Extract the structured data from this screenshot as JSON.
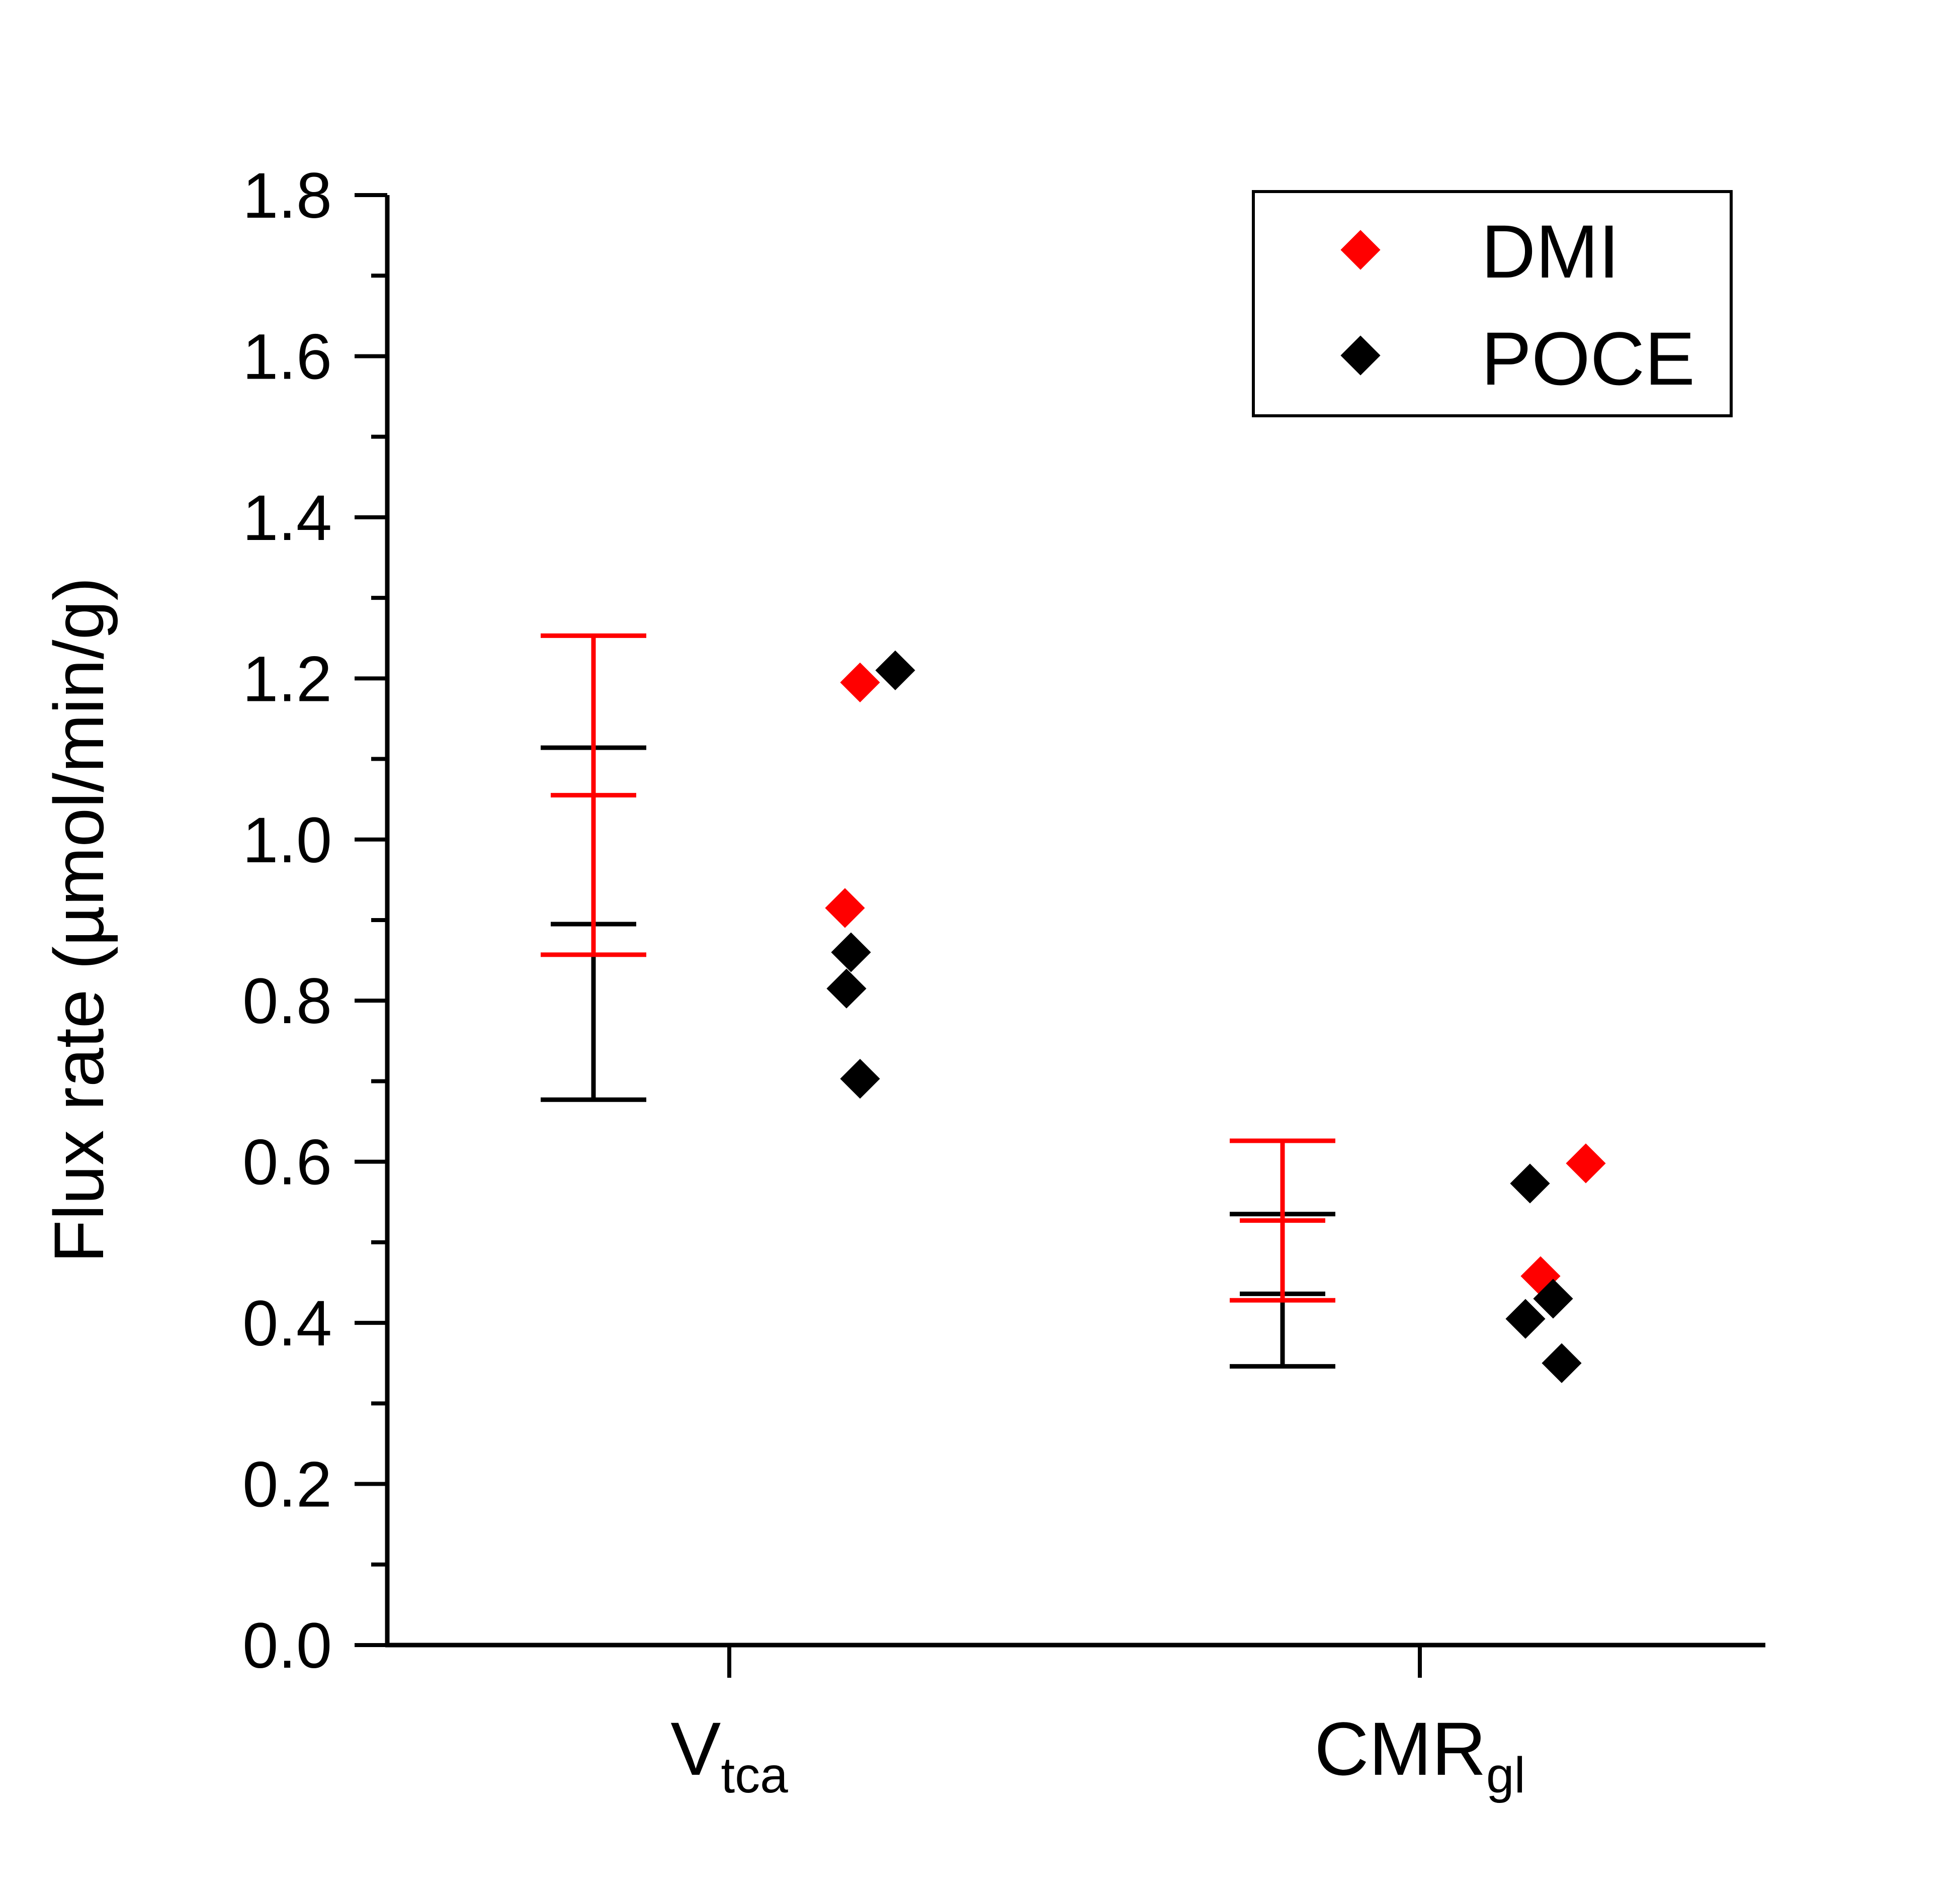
{
  "chart_data": {
    "type": "scatter",
    "title": "",
    "xlabel": "",
    "ylabel": "Flux rate (µmol/min/g)",
    "ylim": [
      0,
      1.8
    ],
    "yticks": [
      "0.0",
      "0.2",
      "0.4",
      "0.6",
      "0.8",
      "1.0",
      "1.2",
      "1.4",
      "1.6",
      "1.8"
    ],
    "ytick_values": [
      0,
      0.2,
      0.4,
      0.6,
      0.8,
      1.0,
      1.2,
      1.4,
      1.6,
      1.8
    ],
    "categories": [
      {
        "main": "V",
        "sub": "tca"
      },
      {
        "main": "CMR",
        "sub": "gl"
      }
    ],
    "legend_position": "top-right",
    "series": [
      {
        "name": "DMI",
        "color": "#ff0000",
        "points": [
          {
            "category": 0,
            "y": 1.195
          },
          {
            "category": 0,
            "y": 0.915
          },
          {
            "category": 1,
            "y": 0.598
          },
          {
            "category": 1,
            "y": 0.458
          }
        ],
        "error_bars": [
          {
            "category": 0,
            "mean": 1.055,
            "lower": 0.857,
            "upper": 1.253
          },
          {
            "category": 1,
            "mean": 0.527,
            "lower": 0.428,
            "upper": 0.626
          }
        ]
      },
      {
        "name": "POCE",
        "color": "#000000",
        "points": [
          {
            "category": 0,
            "y": 1.21
          },
          {
            "category": 0,
            "y": 0.86
          },
          {
            "category": 0,
            "y": 0.815
          },
          {
            "category": 0,
            "y": 0.703
          },
          {
            "category": 1,
            "y": 0.573
          },
          {
            "category": 1,
            "y": 0.43
          },
          {
            "category": 1,
            "y": 0.405
          },
          {
            "category": 1,
            "y": 0.35
          }
        ],
        "error_bars": [
          {
            "category": 0,
            "mean": 0.895,
            "lower": 0.677,
            "upper": 1.114
          },
          {
            "category": 1,
            "mean": 0.436,
            "lower": 0.346,
            "upper": 0.535
          }
        ]
      }
    ]
  },
  "legend": {
    "items": [
      {
        "label": "DMI",
        "color": "#ff0000"
      },
      {
        "label": "POCE",
        "color": "#000000"
      }
    ]
  }
}
